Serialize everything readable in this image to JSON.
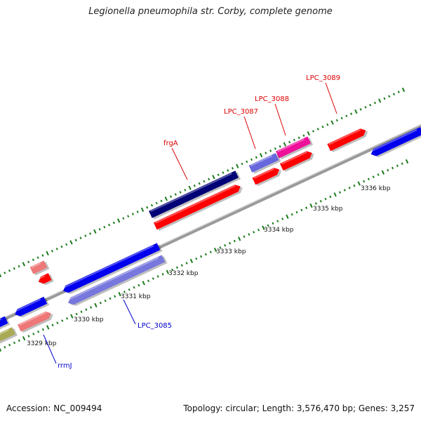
{
  "title": "Legionella pneumophila str. Corby, complete genome",
  "footer": {
    "accession": "Accession: NC_009494",
    "topology": "Topology: circular; Length: 3,576,470 bp; Genes: 3,257"
  },
  "colors": {
    "backbone": "#8c8c8c",
    "minor_tick": "#1a7a1a",
    "major_tick": "#1a7a1a",
    "label_red": "#dd0000",
    "label_blue": "#0000cc"
  },
  "chart_data": {
    "type": "genome-map-linear-zoom",
    "ticks": [
      {
        "label": "3329 kbp",
        "pos": 3329
      },
      {
        "label": "3330 kbp",
        "pos": 3330
      },
      {
        "label": "3331 kbp",
        "pos": 3331
      },
      {
        "label": "3332 kbp",
        "pos": 3332
      },
      {
        "label": "3333 kbp",
        "pos": 3333
      },
      {
        "label": "3334 kbp",
        "pos": 3334
      },
      {
        "label": "3335 kbp",
        "pos": 3335
      },
      {
        "label": "3336 kbp",
        "pos": 3336
      }
    ],
    "features": [
      {
        "name": "LPC_3089",
        "label_color": "#dd0000"
      },
      {
        "name": "LPC_3088",
        "label_color": "#dd0000"
      },
      {
        "name": "LPC_3087",
        "label_color": "#dd0000"
      },
      {
        "name": "frgA",
        "label_color": "#dd0000"
      },
      {
        "name": "LPC_3085",
        "label_color": "#0000cc"
      },
      {
        "name": "rrmJ",
        "label_color": "#0000cc"
      }
    ]
  }
}
